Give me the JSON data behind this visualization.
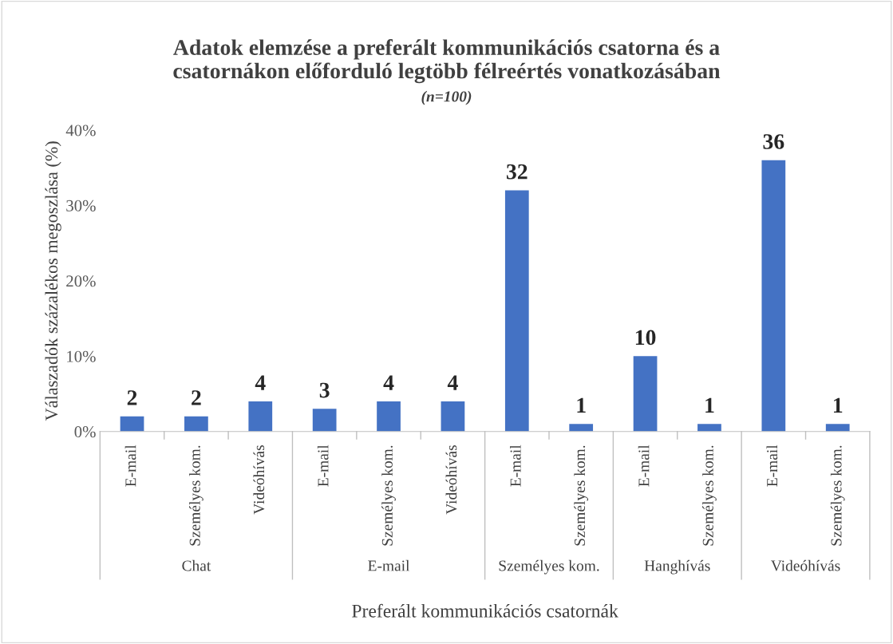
{
  "chart_data": {
    "type": "bar",
    "title": "Adatok elemzése a preferált kommunikációs csatorna és a\ncsatornákon előforduló legtöbb félreértés vonatkozásában",
    "subtitle": "(n=100)",
    "xlabel": "Preferált kommunikációs csatornák",
    "ylabel": "Válaszadók százalékos megoszlása (%)",
    "categories": [
      "E-mail",
      "Személyes kom.",
      "Videóhívás",
      "E-mail",
      "Személyes kom.",
      "Videóhívás",
      "E-mail",
      "Személyes kom.",
      "E-mail",
      "Személyes kom.",
      "E-mail",
      "Személyes kom."
    ],
    "values": [
      2,
      2,
      4,
      3,
      4,
      4,
      32,
      1,
      10,
      1,
      36,
      1
    ],
    "color": "#4472c4",
    "annotations": [
      "Chat",
      "E-mail",
      "Személyes kom.",
      "Hanghívás",
      "Videóhívás"
    ],
    "ylim": [
      0,
      40
    ],
    "yticks": [
      {
        "value": 0,
        "label": "0%"
      },
      {
        "value": 10,
        "label": "10%"
      },
      {
        "value": 20,
        "label": "20%"
      },
      {
        "value": 30,
        "label": "30%"
      },
      {
        "value": 40,
        "label": "40%"
      }
    ],
    "data_labels": true,
    "grid": false,
    "legend": false
  }
}
